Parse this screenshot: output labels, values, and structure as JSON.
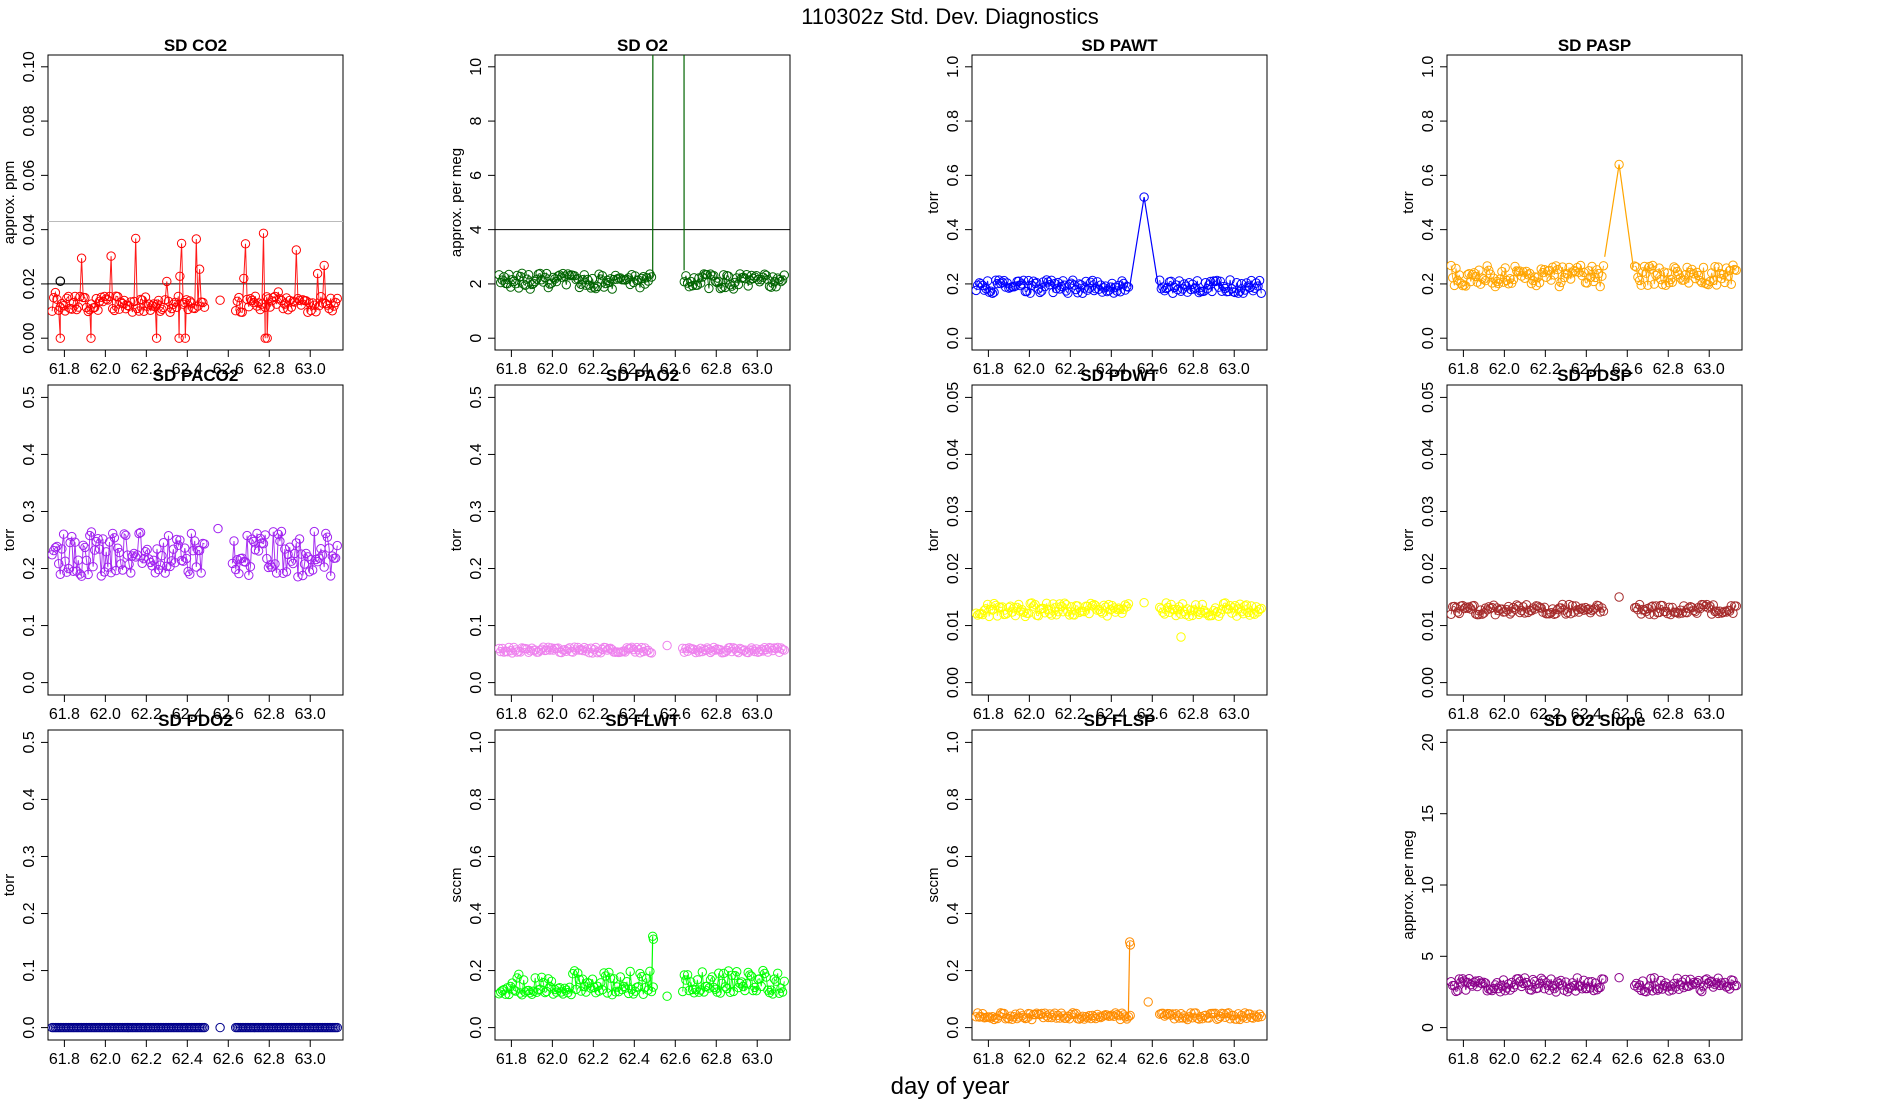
{
  "figure": {
    "title": "110302z   Std. Dev. Diagnostics",
    "xlabel": "day of year"
  },
  "chart_data": [
    {
      "type": "scatter",
      "title": "SD CO2",
      "ylabel": "approx. ppm",
      "color": "#ff0000",
      "xlim": [
        61.72,
        63.16
      ],
      "ylim": [
        0,
        0.1
      ],
      "yticks": [
        0,
        0.02,
        0.04,
        0.06,
        0.08,
        0.1
      ],
      "ytick_labels": [
        "0.00",
        "0.02",
        "0.04",
        "0.06",
        "0.08",
        "0.10"
      ],
      "xticks": [
        61.8,
        62.0,
        62.2,
        62.4,
        62.6,
        62.8,
        63.0
      ],
      "xtick_labels": [
        "61.8",
        "62.0",
        "62.2",
        "62.4",
        "62.6",
        "62.8",
        "63.0"
      ],
      "hlines": [
        {
          "y": 0.02,
          "color": "#000000"
        },
        {
          "y": 0.043,
          "color": "#bbbbbb"
        }
      ],
      "base": 0.0125,
      "amp": 0.003,
      "spike_prob": 0.12,
      "spike_top": 0.039,
      "zeros": [
        61.78,
        61.93,
        62.25,
        62.36,
        62.39,
        62.78,
        62.79
      ],
      "gap": [
        62.49,
        62.63
      ],
      "isolated": [
        {
          "x": 62.56,
          "y": 0.014
        }
      ],
      "outliers": [],
      "hl_point": {
        "x": 61.78,
        "y": 0.021,
        "color": "#000000"
      }
    },
    {
      "type": "scatter",
      "title": "SD O2",
      "ylabel": "approx. per meg",
      "color": "#006400",
      "xlim": [
        61.72,
        63.16
      ],
      "ylim": [
        0,
        10
      ],
      "yticks": [
        0,
        2,
        4,
        6,
        8,
        10
      ],
      "ytick_labels": [
        "0",
        "2",
        "4",
        "6",
        "8",
        "10"
      ],
      "xticks": [
        61.8,
        62.0,
        62.2,
        62.4,
        62.6,
        62.8,
        63.0
      ],
      "xtick_labels": [
        "61.8",
        "62.0",
        "62.2",
        "62.4",
        "62.6",
        "62.8",
        "63.0"
      ],
      "hlines": [
        {
          "y": 4,
          "color": "#000000"
        }
      ],
      "base": 2.1,
      "amp": 0.3,
      "gap": [
        62.49,
        62.64
      ],
      "bridge": [
        {
          "x": 62.49,
          "y": 2.2
        },
        {
          "x": 62.497,
          "y": 80
        },
        {
          "x": 62.64,
          "y": 80
        },
        {
          "x": 62.643,
          "y": 2.5
        }
      ],
      "isolated": [],
      "outliers": []
    },
    {
      "type": "scatter",
      "title": "SD PAWT",
      "ylabel": "torr",
      "color": "#0000ff",
      "xlim": [
        61.72,
        63.16
      ],
      "ylim": [
        0,
        1
      ],
      "yticks": [
        0,
        0.2,
        0.4,
        0.6,
        0.8,
        1
      ],
      "ytick_labels": [
        "0.0",
        "0.2",
        "0.4",
        "0.6",
        "0.8",
        "1.0"
      ],
      "xticks": [
        61.8,
        62.0,
        62.2,
        62.4,
        62.6,
        62.8,
        63.0
      ],
      "xtick_labels": [
        "61.8",
        "62.0",
        "62.2",
        "62.4",
        "62.6",
        "62.8",
        "63.0"
      ],
      "hlines": [],
      "base": 0.19,
      "amp": 0.025,
      "gap": [
        62.49,
        62.63
      ],
      "bridge": [
        {
          "x": 62.49,
          "y": 0.19
        },
        {
          "x": 62.56,
          "y": 0.52
        },
        {
          "x": 62.63,
          "y": 0.19
        }
      ],
      "isolated": [
        {
          "x": 62.56,
          "y": 0.52
        }
      ],
      "outliers": []
    },
    {
      "type": "scatter",
      "title": "SD PASP",
      "ylabel": "torr",
      "color": "#ffa500",
      "xlim": [
        61.72,
        63.16
      ],
      "ylim": [
        0,
        1
      ],
      "yticks": [
        0,
        0.2,
        0.4,
        0.6,
        0.8,
        1
      ],
      "ytick_labels": [
        "0.0",
        "0.2",
        "0.4",
        "0.6",
        "0.8",
        "1.0"
      ],
      "xticks": [
        61.8,
        62.0,
        62.2,
        62.4,
        62.6,
        62.8,
        63.0
      ],
      "xtick_labels": [
        "61.8",
        "62.0",
        "62.2",
        "62.4",
        "62.6",
        "62.8",
        "63.0"
      ],
      "hlines": [],
      "base": 0.23,
      "amp": 0.04,
      "gap": [
        62.49,
        62.63
      ],
      "bridge": [
        {
          "x": 62.49,
          "y": 0.3
        },
        {
          "x": 62.56,
          "y": 0.64
        },
        {
          "x": 62.63,
          "y": 0.26
        }
      ],
      "isolated": [
        {
          "x": 62.56,
          "y": 0.64
        }
      ],
      "outliers": []
    },
    {
      "type": "scatter",
      "title": "SD PACO2",
      "ylabel": "torr",
      "color": "#a020f0",
      "xlim": [
        61.72,
        63.16
      ],
      "ylim": [
        0,
        0.5
      ],
      "yticks": [
        0,
        0.1,
        0.2,
        0.3,
        0.4,
        0.5
      ],
      "ytick_labels": [
        "0.0",
        "0.1",
        "0.2",
        "0.3",
        "0.4",
        "0.5"
      ],
      "xticks": [
        61.8,
        62.0,
        62.2,
        62.4,
        62.6,
        62.8,
        63.0
      ],
      "xtick_labels": [
        "61.8",
        "62.0",
        "62.2",
        "62.4",
        "62.6",
        "62.8",
        "63.0"
      ],
      "hlines": [],
      "base": 0.225,
      "amp": 0.04,
      "gap": [
        62.49,
        62.62
      ],
      "isolated": [
        {
          "x": 62.55,
          "y": 0.27
        }
      ],
      "outliers": []
    },
    {
      "type": "scatter",
      "title": "SD PAO2",
      "ylabel": "torr",
      "color": "#ee82ee",
      "xlim": [
        61.72,
        63.16
      ],
      "ylim": [
        0,
        0.5
      ],
      "yticks": [
        0,
        0.1,
        0.2,
        0.3,
        0.4,
        0.5
      ],
      "ytick_labels": [
        "0.0",
        "0.1",
        "0.2",
        "0.3",
        "0.4",
        "0.5"
      ],
      "xticks": [
        61.8,
        62.0,
        62.2,
        62.4,
        62.6,
        62.8,
        63.0
      ],
      "xtick_labels": [
        "61.8",
        "62.0",
        "62.2",
        "62.4",
        "62.6",
        "62.8",
        "63.0"
      ],
      "hlines": [],
      "base": 0.057,
      "amp": 0.005,
      "gap": [
        62.49,
        62.63
      ],
      "isolated": [
        {
          "x": 62.56,
          "y": 0.065
        }
      ],
      "outliers": []
    },
    {
      "type": "scatter",
      "title": "SD PDWT",
      "ylabel": "torr",
      "color": "#ffff00",
      "xlim": [
        61.72,
        63.16
      ],
      "ylim": [
        0,
        0.05
      ],
      "yticks": [
        0,
        0.01,
        0.02,
        0.03,
        0.04,
        0.05
      ],
      "ytick_labels": [
        "0.00",
        "0.01",
        "0.02",
        "0.03",
        "0.04",
        "0.05"
      ],
      "xticks": [
        61.8,
        62.0,
        62.2,
        62.4,
        62.6,
        62.8,
        63.0
      ],
      "xtick_labels": [
        "61.8",
        "62.0",
        "62.2",
        "62.4",
        "62.6",
        "62.8",
        "63.0"
      ],
      "hlines": [],
      "base": 0.0128,
      "amp": 0.0012,
      "gap": [
        62.49,
        62.63
      ],
      "isolated": [
        {
          "x": 62.56,
          "y": 0.014
        }
      ],
      "outliers": [
        {
          "x": 62.74,
          "y": 0.008
        }
      ]
    },
    {
      "type": "scatter",
      "title": "SD PDSP",
      "ylabel": "torr",
      "color": "#a52a2a",
      "xlim": [
        61.72,
        63.16
      ],
      "ylim": [
        0,
        0.05
      ],
      "yticks": [
        0,
        0.01,
        0.02,
        0.03,
        0.04,
        0.05
      ],
      "ytick_labels": [
        "0.00",
        "0.01",
        "0.02",
        "0.03",
        "0.04",
        "0.05"
      ],
      "xticks": [
        61.8,
        62.0,
        62.2,
        62.4,
        62.6,
        62.8,
        63.0
      ],
      "xtick_labels": [
        "61.8",
        "62.0",
        "62.2",
        "62.4",
        "62.6",
        "62.8",
        "63.0"
      ],
      "hlines": [],
      "base": 0.0128,
      "amp": 0.0009,
      "gap": [
        62.49,
        62.63
      ],
      "isolated": [
        {
          "x": 62.56,
          "y": 0.015
        }
      ],
      "outliers": []
    },
    {
      "type": "scatter",
      "title": "SD PDO2",
      "ylabel": "torr",
      "color": "#00008b",
      "xlim": [
        61.72,
        63.16
      ],
      "ylim": [
        0,
        0.5
      ],
      "yticks": [
        0,
        0.1,
        0.2,
        0.3,
        0.4,
        0.5
      ],
      "ytick_labels": [
        "0.0",
        "0.1",
        "0.2",
        "0.3",
        "0.4",
        "0.5"
      ],
      "xticks": [
        61.8,
        62.0,
        62.2,
        62.4,
        62.6,
        62.8,
        63.0
      ],
      "xtick_labels": [
        "61.8",
        "62.0",
        "62.2",
        "62.4",
        "62.6",
        "62.8",
        "63.0"
      ],
      "hlines": [],
      "base": 0.0,
      "amp": 0.0,
      "flat": true,
      "gap": [
        62.49,
        62.63
      ],
      "isolated": [
        {
          "x": 62.56,
          "y": 0.0
        }
      ],
      "outliers": []
    },
    {
      "type": "scatter",
      "title": "SD FLWT",
      "ylabel": "sccm",
      "color": "#00ff00",
      "xlim": [
        61.72,
        63.16
      ],
      "ylim": [
        0,
        1
      ],
      "yticks": [
        0,
        0.2,
        0.4,
        0.6,
        0.8,
        1
      ],
      "ytick_labels": [
        "0.0",
        "0.2",
        "0.4",
        "0.6",
        "0.8",
        "1.0"
      ],
      "xticks": [
        61.8,
        62.0,
        62.2,
        62.4,
        62.6,
        62.8,
        63.0
      ],
      "xtick_labels": [
        "61.8",
        "62.0",
        "62.2",
        "62.4",
        "62.6",
        "62.8",
        "63.0"
      ],
      "hlines": [],
      "base": 0.13,
      "amp": 0.015,
      "band": [
        0.12,
        0.2
      ],
      "gap": [
        62.5,
        62.63
      ],
      "isolated": [
        {
          "x": 62.56,
          "y": 0.11
        }
      ],
      "outliers": [
        {
          "x": 62.49,
          "y": 0.32
        },
        {
          "x": 62.493,
          "y": 0.31
        }
      ],
      "spike_line": [
        {
          "x": 62.485,
          "y": 0.14
        },
        {
          "x": 62.49,
          "y": 0.32
        }
      ]
    },
    {
      "type": "scatter",
      "title": "SD FLSP",
      "ylabel": "sccm",
      "color": "#ff8c00",
      "xlim": [
        61.72,
        63.16
      ],
      "ylim": [
        0,
        1
      ],
      "yticks": [
        0,
        0.2,
        0.4,
        0.6,
        0.8,
        1
      ],
      "ytick_labels": [
        "0.0",
        "0.2",
        "0.4",
        "0.6",
        "0.8",
        "1.0"
      ],
      "xticks": [
        61.8,
        62.0,
        62.2,
        62.4,
        62.6,
        62.8,
        63.0
      ],
      "xtick_labels": [
        "61.8",
        "62.0",
        "62.2",
        "62.4",
        "62.6",
        "62.8",
        "63.0"
      ],
      "hlines": [],
      "base": 0.04,
      "amp": 0.012,
      "gap": [
        62.5,
        62.63
      ],
      "isolated": [
        {
          "x": 62.58,
          "y": 0.09
        }
      ],
      "outliers": [
        {
          "x": 62.49,
          "y": 0.3
        },
        {
          "x": 62.493,
          "y": 0.29
        }
      ],
      "spike_line": [
        {
          "x": 62.483,
          "y": 0.03
        },
        {
          "x": 62.49,
          "y": 0.3
        }
      ]
    },
    {
      "type": "scatter",
      "title": "SD O2 Slope",
      "ylabel": "approx. per meg",
      "color": "#8b008b",
      "xlim": [
        61.72,
        63.16
      ],
      "ylim": [
        0,
        20
      ],
      "yticks": [
        0,
        5,
        10,
        15,
        20
      ],
      "ytick_labels": [
        "0",
        "5",
        "10",
        "15",
        "20"
      ],
      "xticks": [
        61.8,
        62.0,
        62.2,
        62.4,
        62.6,
        62.8,
        63.0
      ],
      "xtick_labels": [
        "61.8",
        "62.0",
        "62.2",
        "62.4",
        "62.6",
        "62.8",
        "63.0"
      ],
      "hlines": [],
      "base": 3.0,
      "amp": 0.5,
      "gap": [
        62.49,
        62.63
      ],
      "isolated": [
        {
          "x": 62.56,
          "y": 3.5
        }
      ],
      "outliers": []
    }
  ]
}
